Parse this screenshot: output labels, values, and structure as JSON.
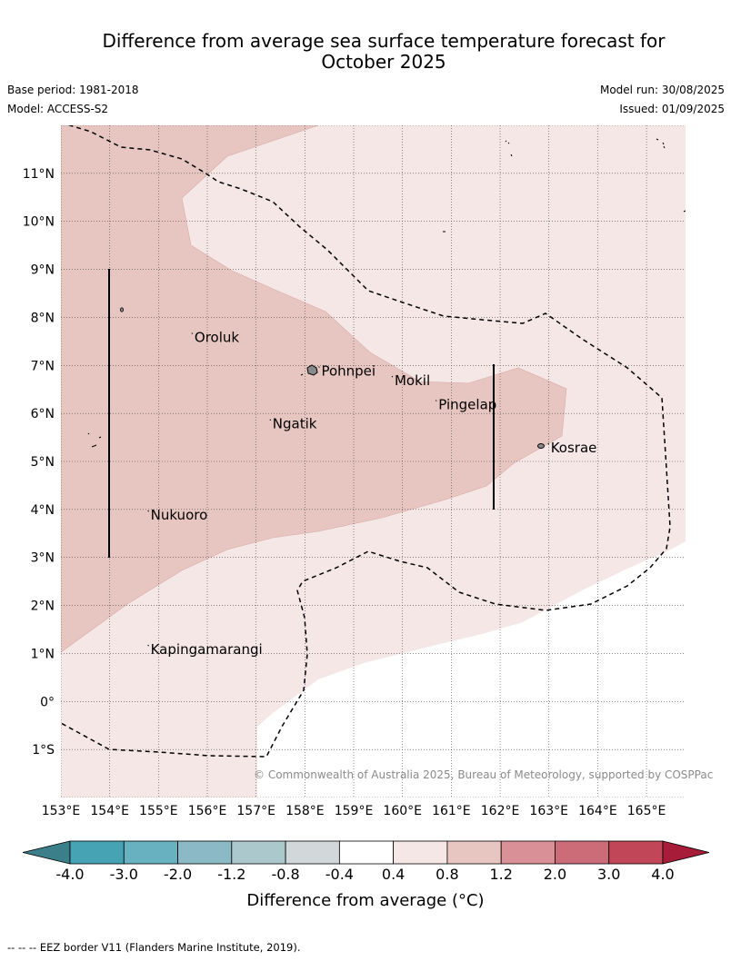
{
  "title": {
    "line1": "Difference from average sea surface temperature forecast for",
    "line2": "October 2025"
  },
  "meta": {
    "base_period": "Base period: 1981-2018",
    "model": "Model: ACCESS-S2",
    "model_run": "Model run: 30/08/2025",
    "issued": "Issued: 01/09/2025"
  },
  "map": {
    "lon_range": [
      153,
      165.8
    ],
    "lat_range": [
      -2,
      12
    ],
    "lon_ticks": [
      "153°E",
      "154°E",
      "155°E",
      "156°E",
      "157°E",
      "158°E",
      "159°E",
      "160°E",
      "161°E",
      "162°E",
      "163°E",
      "164°E",
      "165°E"
    ],
    "lat_ticks": [
      "11°N",
      "10°N",
      "9°N",
      "8°N",
      "7°N",
      "6°N",
      "5°N",
      "4°N",
      "3°N",
      "2°N",
      "1°N",
      "0°",
      "1°S"
    ],
    "grid": true,
    "places": [
      {
        "name": "Oroluk",
        "lon": 155.7,
        "lat": 7.6
      },
      {
        "name": "Pohnpei",
        "lon": 158.3,
        "lat": 6.9
      },
      {
        "name": "Mokil",
        "lon": 159.8,
        "lat": 6.7
      },
      {
        "name": "Pingelap",
        "lon": 160.7,
        "lat": 6.2
      },
      {
        "name": "Ngatik",
        "lon": 157.3,
        "lat": 5.8
      },
      {
        "name": "Kosrae",
        "lon": 163.0,
        "lat": 5.3
      },
      {
        "name": "Nukuoro",
        "lon": 154.8,
        "lat": 3.9
      },
      {
        "name": "Kapingamarangi",
        "lon": 154.8,
        "lat": 1.1
      }
    ],
    "copyright": "© Commonwealth of Australia 2025, Bureau of Meteorology, supported by COSPPac"
  },
  "colorbar": {
    "labels": [
      "-4.0",
      "-3.0",
      "-2.0",
      "-1.2",
      "-0.8",
      "-0.4",
      "0.4",
      "0.8",
      "1.2",
      "2.0",
      "3.0",
      "4.0"
    ],
    "colors": [
      "#45a3b4",
      "#67b1c0",
      "#8bbac6",
      "#abc9cd",
      "#d2d7d9",
      "#ffffff",
      "#f4e7e6",
      "#e7c6c1",
      "#d99097",
      "#cb6c78",
      "#c04658"
    ],
    "under_color": "#3b7f8a",
    "over_color": "#a71c38",
    "title": "Difference from average (°C)"
  },
  "footnote": "--  --  -- EEZ border V11 (Flanders Marine Institute, 2019)."
}
